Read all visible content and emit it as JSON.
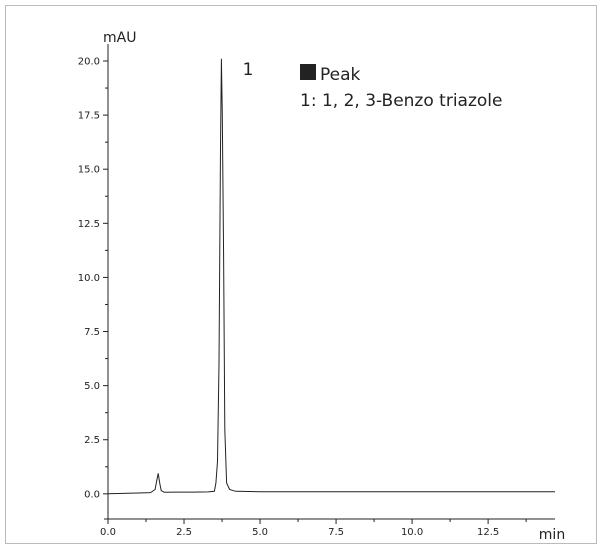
{
  "chart_data": {
    "type": "line",
    "title": "",
    "xlabel": "min",
    "ylabel": "mAU",
    "xlim": [
      0.0,
      14.7
    ],
    "ylim": [
      -0.7,
      20.6
    ],
    "x_ticks": [
      0.0,
      2.5,
      5.0,
      7.5,
      10.0,
      12.5
    ],
    "x_tick_labels": [
      "0.0",
      "2.5",
      "5.0",
      "7.5",
      "10.0",
      "12.5"
    ],
    "y_ticks": [
      0.0,
      2.5,
      5.0,
      7.5,
      10.0,
      12.5,
      15.0,
      17.5,
      20.0
    ],
    "y_tick_labels": [
      "0.0",
      "2.5",
      "5.0",
      "7.5",
      "10.0",
      "12.5",
      "15.0",
      "17.5",
      "20.0"
    ],
    "grid": false,
    "legend": {
      "placement": "top-right",
      "title": "Peak",
      "entries": [
        "1: 1, 2, 3-Benzo triazole"
      ]
    },
    "peak_labels": [
      {
        "label": "1",
        "x": 4.1,
        "y": 19.9
      }
    ],
    "series": [
      {
        "x": [
          0.0,
          0.5,
          1.0,
          1.4,
          1.55,
          1.6,
          1.65,
          1.7,
          1.75,
          1.85,
          2.2,
          2.8,
          3.3,
          3.5,
          3.55,
          3.6,
          3.65,
          3.7,
          3.73,
          3.76,
          3.8,
          3.84,
          3.9,
          4.0,
          4.2,
          5.0,
          7.5,
          10.0,
          12.5,
          14.7
        ],
        "y": [
          0.0,
          0.02,
          0.04,
          0.06,
          0.2,
          0.6,
          0.95,
          0.5,
          0.15,
          0.07,
          0.08,
          0.08,
          0.09,
          0.12,
          0.5,
          1.5,
          6.0,
          16.0,
          20.1,
          17.5,
          11.0,
          3.0,
          0.5,
          0.2,
          0.12,
          0.1,
          0.1,
          0.1,
          0.1,
          0.1
        ]
      }
    ],
    "colors": {
      "line": "#222222",
      "axis": "#222222",
      "frame": "#bbbbbb",
      "legend_marker": "#222222"
    }
  }
}
